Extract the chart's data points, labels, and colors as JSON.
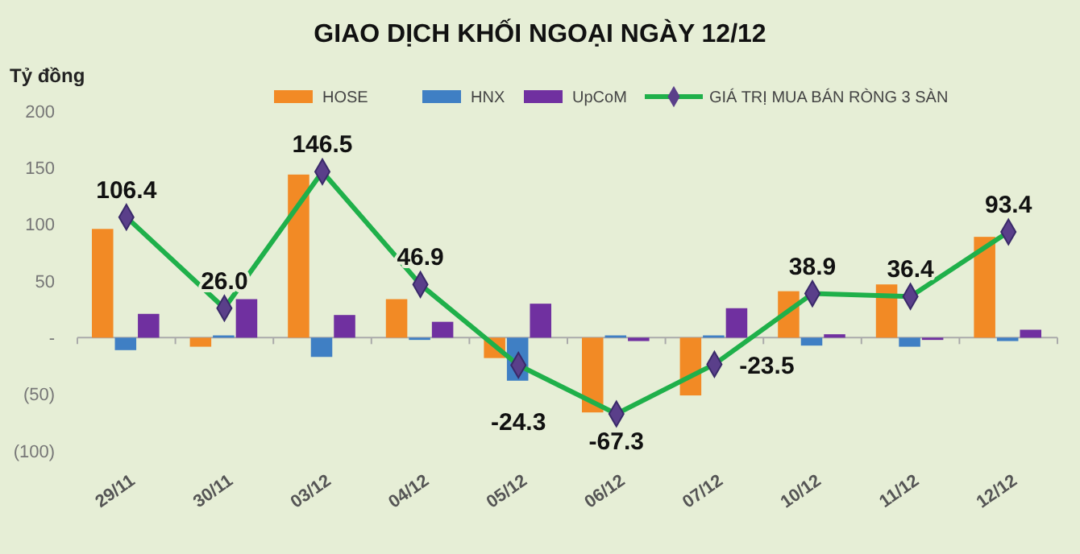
{
  "chart_data": {
    "type": "bar",
    "title": "GIAO DỊCH KHỐI NGOẠI NGÀY 12/12",
    "ylabel": "Tỷ đồng",
    "categories": [
      "29/11",
      "30/11",
      "03/12",
      "04/12",
      "05/12",
      "06/12",
      "07/12",
      "10/12",
      "11/12",
      "12/12"
    ],
    "series": [
      {
        "name": "HOSE",
        "color": "#f28a25",
        "values": [
          96,
          -8,
          144,
          34,
          -18,
          -66,
          -51,
          41,
          47,
          89
        ]
      },
      {
        "name": "HNX",
        "color": "#3f7fc4",
        "values": [
          -11,
          2,
          -17,
          -2,
          -38,
          2,
          2,
          -7,
          -8,
          -3
        ]
      },
      {
        "name": "UpCoM",
        "color": "#7030a0",
        "values": [
          21,
          34,
          20,
          14,
          30,
          -3,
          26,
          3,
          -2,
          7
        ]
      },
      {
        "name": "GIÁ TRỊ MUA BÁN RÒNG 3 SÀN",
        "type": "line",
        "color": "#1fb04a",
        "marker": "diamond",
        "values": [
          106.4,
          26.0,
          146.5,
          46.9,
          -24.3,
          -67.3,
          -23.5,
          38.9,
          36.4,
          93.4
        ],
        "value_labels": [
          "106.4",
          "26.0",
          "146.5",
          "46.9",
          "-24.3",
          "-67.3",
          "-23.5",
          "38.9",
          "36.4",
          "93.4"
        ]
      }
    ],
    "ylim": [
      -100,
      200
    ],
    "yticks": [
      200,
      150,
      100,
      50,
      {
        "value": 0,
        "label": "-"
      },
      {
        "value": -50,
        "label": "(50)"
      },
      {
        "value": -100,
        "label": "(100)"
      }
    ],
    "legend": "top"
  }
}
